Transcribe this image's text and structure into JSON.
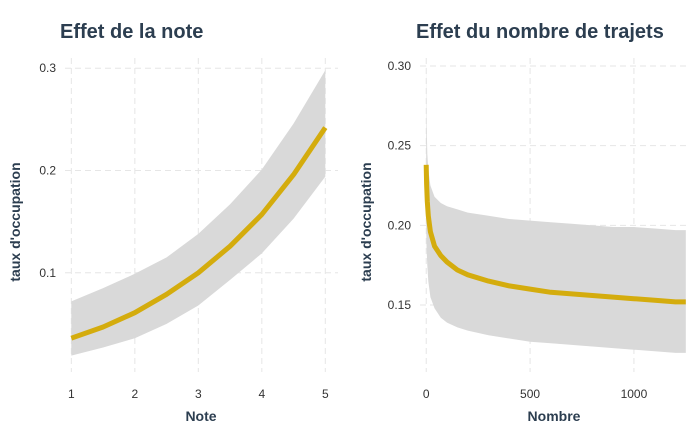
{
  "colors": {
    "line": "#d4ac0d",
    "ribbon": "#d9d9d9",
    "text": "#2c3e50"
  },
  "chart_data": [
    {
      "type": "line",
      "title": "Effet de la note",
      "xlabel": "Note",
      "ylabel": "taux d'occupation",
      "xlim": [
        0.9,
        5.2
      ],
      "ylim": [
        0.003,
        0.31
      ],
      "xticks": [
        1,
        2,
        3,
        4,
        5
      ],
      "yticks": [
        0.1,
        0.2,
        0.3
      ],
      "ytick_labels": [
        "0.1",
        "0.2",
        "0.3"
      ],
      "grid": true,
      "series": [
        {
          "x": [
            1,
            1.5,
            2,
            2.5,
            3,
            3.5,
            4,
            4.5,
            5
          ],
          "y": [
            0.036,
            0.047,
            0.061,
            0.079,
            0.1,
            0.126,
            0.157,
            0.196,
            0.242
          ],
          "lower": [
            0.019,
            0.027,
            0.036,
            0.05,
            0.068,
            0.093,
            0.119,
            0.153,
            0.194
          ],
          "upper": [
            0.072,
            0.085,
            0.099,
            0.115,
            0.138,
            0.167,
            0.201,
            0.246,
            0.298
          ]
        }
      ]
    },
    {
      "type": "line",
      "title": "Effet du nombre de trajets",
      "xlabel": "Nombre",
      "ylabel": "taux d'occupation",
      "xlim": [
        -30,
        1270
      ],
      "ylim": [
        0.108,
        0.305
      ],
      "xticks": [
        0,
        500,
        1000
      ],
      "yticks": [
        0.15,
        0.2,
        0.25,
        0.3
      ],
      "ytick_labels": [
        "0.15",
        "0.20",
        "0.25",
        "0.30"
      ],
      "grid": true,
      "series": [
        {
          "x": [
            0,
            2,
            5,
            10,
            20,
            40,
            70,
            100,
            150,
            200,
            300,
            400,
            500,
            600,
            700,
            800,
            900,
            1000,
            1100,
            1200,
            1250
          ],
          "y": [
            0.238,
            0.226,
            0.215,
            0.206,
            0.196,
            0.187,
            0.181,
            0.177,
            0.172,
            0.169,
            0.165,
            0.162,
            0.16,
            0.158,
            0.157,
            0.156,
            0.155,
            0.154,
            0.153,
            0.152,
            0.152
          ],
          "lower": [
            0.2,
            0.185,
            0.175,
            0.165,
            0.155,
            0.148,
            0.142,
            0.139,
            0.136,
            0.134,
            0.131,
            0.129,
            0.127,
            0.126,
            0.125,
            0.124,
            0.123,
            0.122,
            0.121,
            0.12,
            0.12
          ],
          "upper": [
            0.305,
            0.265,
            0.245,
            0.235,
            0.225,
            0.218,
            0.214,
            0.212,
            0.21,
            0.208,
            0.206,
            0.204,
            0.203,
            0.202,
            0.201,
            0.2,
            0.199,
            0.199,
            0.198,
            0.197,
            0.197
          ]
        }
      ]
    }
  ]
}
